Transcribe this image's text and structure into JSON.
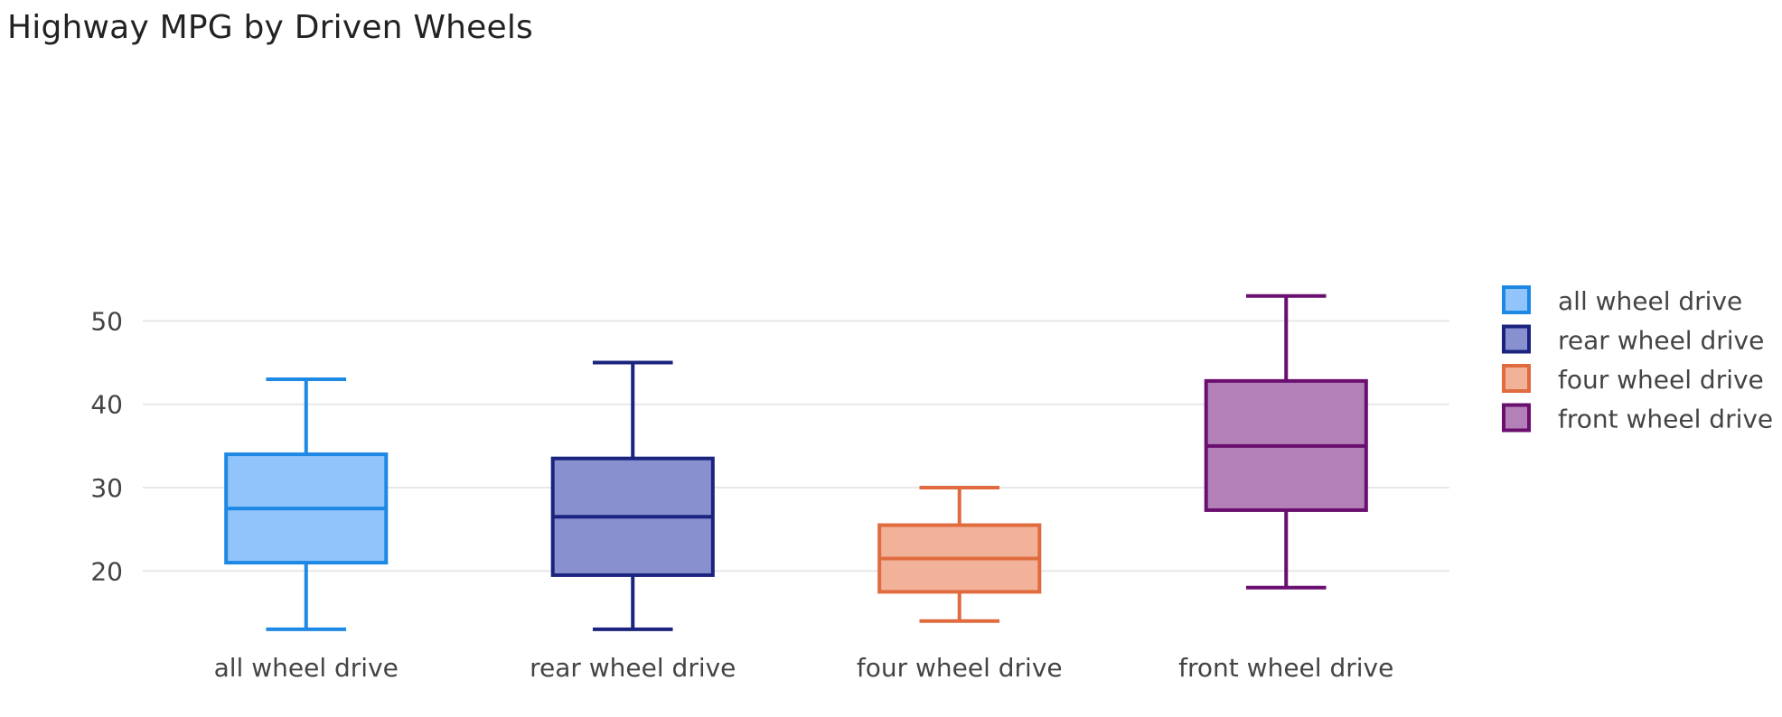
{
  "chart_data": {
    "type": "box",
    "title": "Highway MPG by Driven Wheels",
    "xlabel": "",
    "ylabel": "",
    "ylim": [
      10.5,
      56
    ],
    "yticks": [
      20,
      30,
      40,
      50
    ],
    "grid": true,
    "legend_position": "top-right",
    "categories": [
      "all wheel drive",
      "rear wheel drive",
      "four wheel drive",
      "front wheel drive"
    ],
    "series": [
      {
        "name": "all wheel drive",
        "min": 13,
        "q1": 21,
        "median": 27.5,
        "q3": 34,
        "max": 43,
        "color": "#1e88e5",
        "fill": "#90c4fa"
      },
      {
        "name": "rear wheel drive",
        "min": 13,
        "q1": 19.5,
        "median": 26.5,
        "q3": 33.5,
        "max": 45,
        "color": "#1a237e",
        "fill": "#8890cf"
      },
      {
        "name": "four wheel drive",
        "min": 14,
        "q1": 17.5,
        "median": 21.5,
        "q3": 25.5,
        "max": 30,
        "color": "#e06b3f",
        "fill": "#f2b29a"
      },
      {
        "name": "front wheel drive",
        "min": 18,
        "q1": 27.3,
        "median": 35,
        "q3": 42.8,
        "max": 53,
        "color": "#6a0f70",
        "fill": "#b381b8"
      }
    ]
  }
}
